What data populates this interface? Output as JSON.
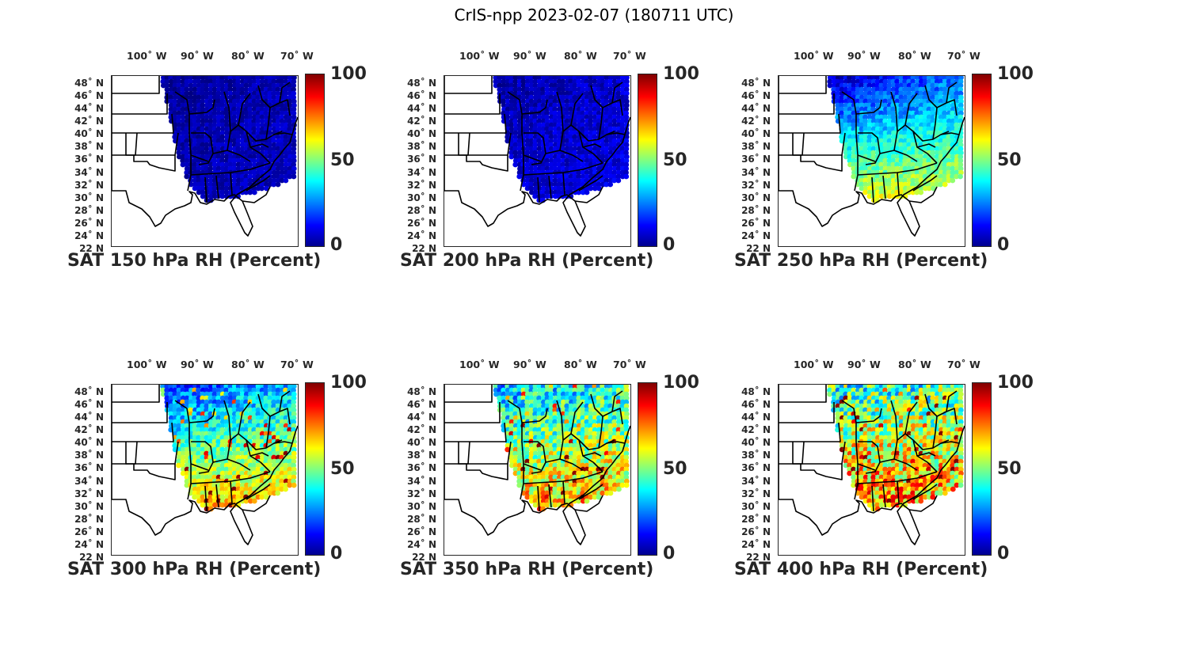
{
  "figure": {
    "title": "CrIS-npp 2023-02-07 (180711 UTC)"
  },
  "lon_labels": [
    "100˚ W",
    "90˚ W",
    "80˚ W",
    "70˚ W"
  ],
  "lat_labels": [
    "48˚ N",
    "46˚ N",
    "44˚ N",
    "42˚ N",
    "40˚ N",
    "38˚ N",
    "36˚ N",
    "34˚ N",
    "32˚ N",
    "30˚ N",
    "28˚ N",
    "26˚ N",
    "24˚ N",
    "22 N"
  ],
  "colorbar": {
    "min": "0",
    "mid": "50",
    "max": "100",
    "colormap": [
      "#00008f",
      "#0000ff",
      "#00ffff",
      "#80ff80",
      "#ffff00",
      "#ff0000",
      "#800000"
    ]
  },
  "panels": [
    {
      "caption": "SAT 150 hPa RH (Percent)",
      "level_hpa": 150,
      "rh_north": 3,
      "rh_south": 5,
      "rh_east": 10,
      "noise": 4
    },
    {
      "caption": "SAT 200 hPa RH (Percent)",
      "level_hpa": 200,
      "rh_north": 4,
      "rh_south": 8,
      "rh_east": 15,
      "noise": 5
    },
    {
      "caption": "SAT 250 hPa RH (Percent)",
      "level_hpa": 250,
      "rh_north": 5,
      "rh_south": 62,
      "rh_east": 60,
      "noise": 8
    },
    {
      "caption": "SAT 300 hPa RH (Percent)",
      "level_hpa": 300,
      "rh_north": 15,
      "rh_south": 72,
      "rh_east": 65,
      "noise": 12
    },
    {
      "caption": "SAT 350 hPa RH (Percent)",
      "level_hpa": 350,
      "rh_north": 28,
      "rh_south": 70,
      "rh_east": 70,
      "noise": 18
    },
    {
      "caption": "SAT 400 hPa RH (Percent)",
      "level_hpa": 400,
      "rh_north": 40,
      "rh_south": 80,
      "rh_east": 55,
      "noise": 22
    }
  ]
}
